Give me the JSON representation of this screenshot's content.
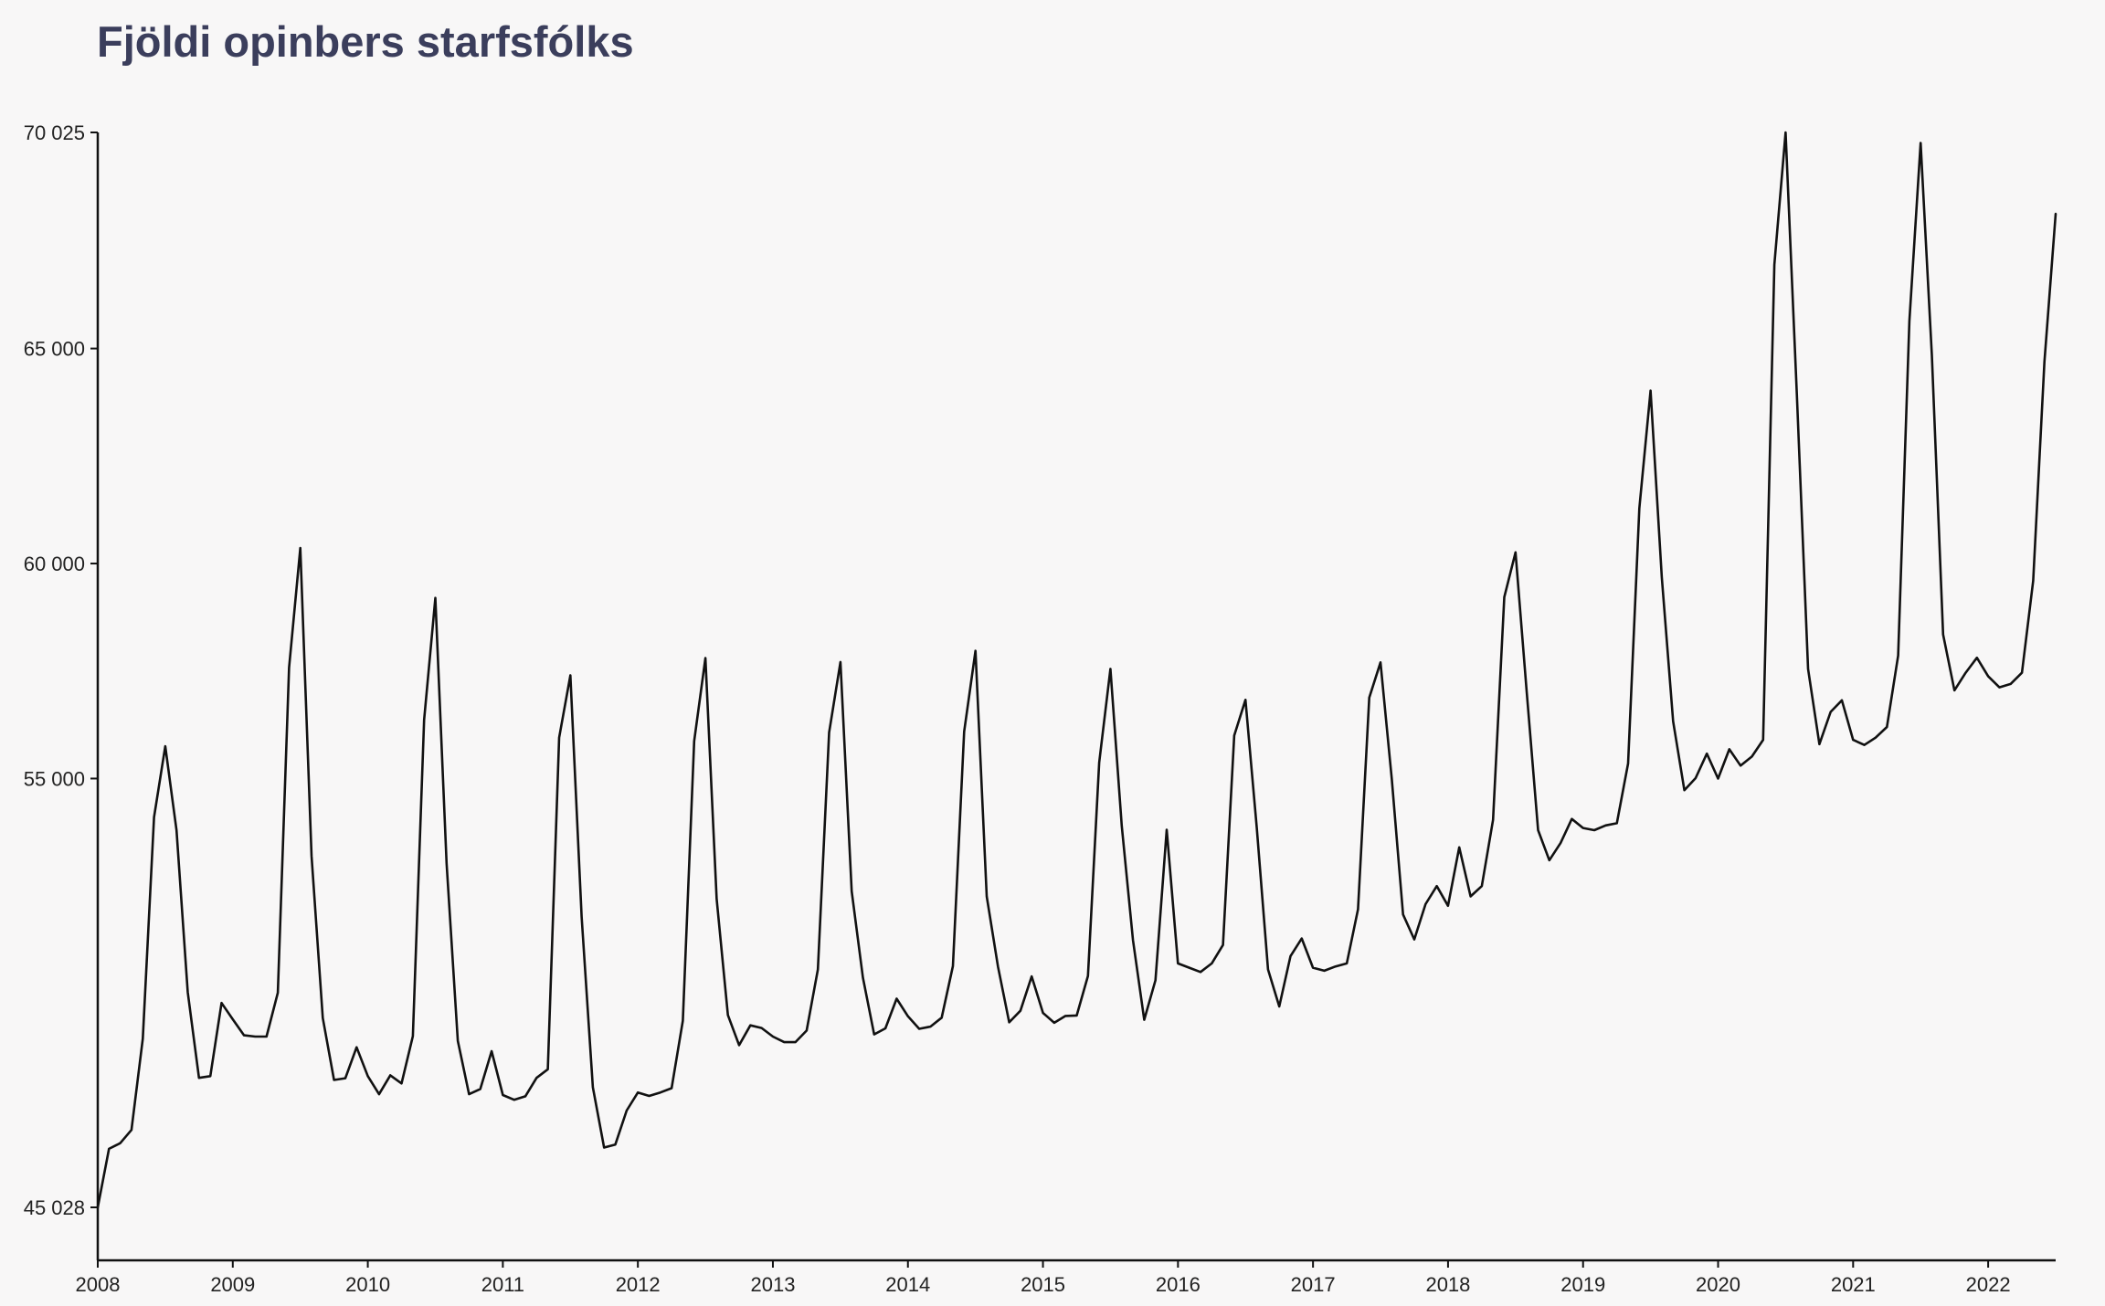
{
  "chart_data": {
    "type": "line",
    "title": "Fjöldi opinbers starfsfólks",
    "xlabel": "",
    "ylabel": "",
    "x_start": "2008-01",
    "x_step": "month",
    "xlim": [
      "2008-01",
      "2022-07"
    ],
    "ylim": [
      45028,
      70025
    ],
    "yticks": [
      45028,
      55000,
      60000,
      65000,
      70025
    ],
    "ytick_labels": [
      "45 028",
      "55 000",
      "60 000",
      "65 000",
      "70 025"
    ],
    "xticks": [
      "2008",
      "2009",
      "2010",
      "2011",
      "2012",
      "2013",
      "2014",
      "2015",
      "2016",
      "2017",
      "2018",
      "2019",
      "2020",
      "2021",
      "2022"
    ],
    "grid": false,
    "line_color": "#111111",
    "series": [
      {
        "values": [
          45028,
          46390,
          46520,
          46830,
          48950,
          54100,
          55750,
          53800,
          50030,
          48040,
          48080,
          49780,
          49400,
          49030,
          49000,
          49000,
          50020,
          57580,
          60360,
          53200,
          49430,
          47990,
          48030,
          48750,
          48080,
          47660,
          48100,
          47910,
          49010,
          56360,
          59200,
          53030,
          48900,
          47660,
          47780,
          48660,
          47640,
          47530,
          47610,
          48040,
          48240,
          55950,
          57400,
          51790,
          47820,
          46420,
          46490,
          47280,
          47700,
          47620,
          47700,
          47800,
          49370,
          55870,
          57800,
          52200,
          49500,
          48800,
          49260,
          49200,
          49000,
          48870,
          48870,
          49140,
          50560,
          56070,
          57710,
          52380,
          50370,
          49050,
          49190,
          49880,
          49470,
          49180,
          49230,
          49440,
          50640,
          56090,
          57970,
          52260,
          50630,
          49330,
          49600,
          50400,
          49550,
          49320,
          49480,
          49490,
          50410,
          55370,
          57550,
          53900,
          51240,
          49390,
          50310,
          53810,
          50700,
          50600,
          50500,
          50700,
          51130,
          56000,
          56830,
          53850,
          50560,
          49700,
          50870,
          51280,
          50600,
          50530,
          50630,
          50700,
          51960,
          56880,
          57700,
          54980,
          51840,
          51260,
          52080,
          52500,
          52040,
          53400,
          52260,
          52500,
          54040,
          59220,
          60260,
          57000,
          53800,
          53100,
          53500,
          54060,
          53850,
          53800,
          53910,
          53960,
          55350,
          61280,
          64020,
          59680,
          56330,
          54730,
          55010,
          55580,
          55000,
          55680,
          55300,
          55510,
          55900,
          66950,
          70025,
          63940,
          57550,
          55800,
          56550,
          56820,
          55900,
          55780,
          55950,
          56200,
          57860,
          65640,
          69780,
          64840,
          58350,
          57050,
          57460,
          57810,
          57380,
          57120,
          57200,
          57460,
          59600,
          64690,
          68130
        ]
      }
    ]
  }
}
